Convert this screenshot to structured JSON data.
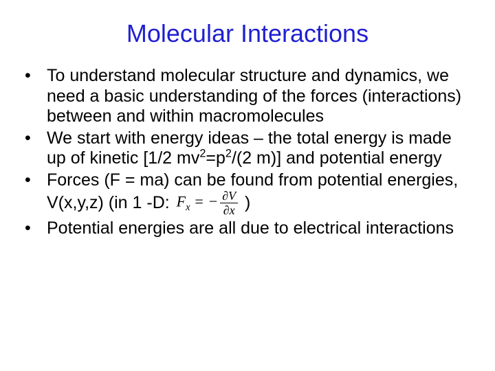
{
  "title": {
    "text": "Molecular Interactions",
    "color": "#1f1fd1",
    "fontsize": 36
  },
  "body": {
    "text_color": "#000000",
    "fontsize": 25,
    "background_color": "#ffffff"
  },
  "bullets": [
    {
      "text": "To understand molecular structure and dynamics, we need a basic understanding of the forces (interactions) between and within macromolecules"
    },
    {
      "pre": "We start with energy ideas – the total energy is made up of kinetic [1/2 mv",
      "sup1": "2",
      "mid1": "=p",
      "sup2": "2",
      "mid2": "/(2 m)] and potential energy"
    },
    {
      "pre": "Forces (F = ma) can be found from potential energies, V(x,y,z) (in 1 -D: ",
      "formula": {
        "lhs_var": "F",
        "lhs_sub": "x",
        "eq": " = −",
        "num_partial": "∂",
        "num_var": "V",
        "den_partial": "∂",
        "den_var": "x"
      },
      "post": " )"
    },
    {
      "text": "Potential energies are all due to electrical interactions"
    }
  ]
}
